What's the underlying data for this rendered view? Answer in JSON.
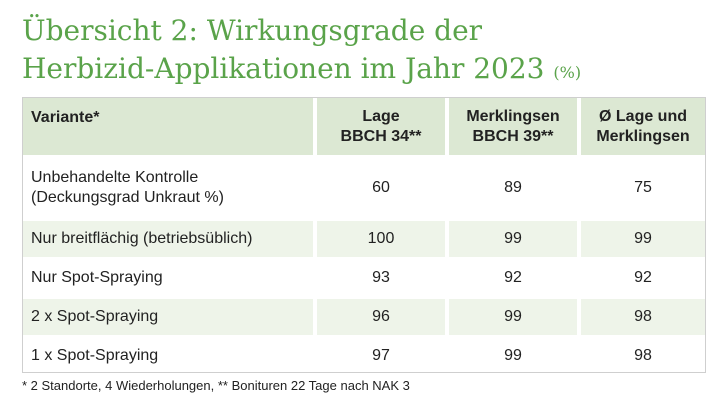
{
  "title": {
    "line1": "Übersicht 2: Wirkungsgrade der",
    "line2": "Herbizid-Applikationen im Jahr 2023",
    "unit": "(%)"
  },
  "table": {
    "headers": [
      {
        "line1": "Variante*",
        "line2": ""
      },
      {
        "line1": "Lage",
        "line2": "BBCH 34**"
      },
      {
        "line1": "Merklingsen",
        "line2": "BBCH 39**"
      },
      {
        "line1": "Ø Lage und",
        "line2": "Merklingsen"
      }
    ],
    "rows": [
      {
        "label_line1": "Unbehandelte Kontrolle",
        "label_line2": "(Deckungsgrad Unkraut %)",
        "lage": "60",
        "merklingsen": "89",
        "avg": "75"
      },
      {
        "label_line1": "Nur breitflächig (betriebsüblich)",
        "label_line2": "",
        "lage": "100",
        "merklingsen": "99",
        "avg": "99"
      },
      {
        "label_line1": "Nur Spot-Spraying",
        "label_line2": "",
        "lage": "93",
        "merklingsen": "92",
        "avg": "92"
      },
      {
        "label_line1": "2 x Spot-Spraying",
        "label_line2": "",
        "lage": "96",
        "merklingsen": "99",
        "avg": "98"
      },
      {
        "label_line1": "1 x Spot-Spraying",
        "label_line2": "",
        "lage": "97",
        "merklingsen": "99",
        "avg": "98"
      }
    ]
  },
  "footnote": "* 2 Standorte, 4 Wiederholungen, ** Bonituren 22 Tage nach NAK 3",
  "colors": {
    "title": "#5aa34a",
    "header_bg": "#dce8d3",
    "alt_row_bg": "#eef4e9"
  }
}
